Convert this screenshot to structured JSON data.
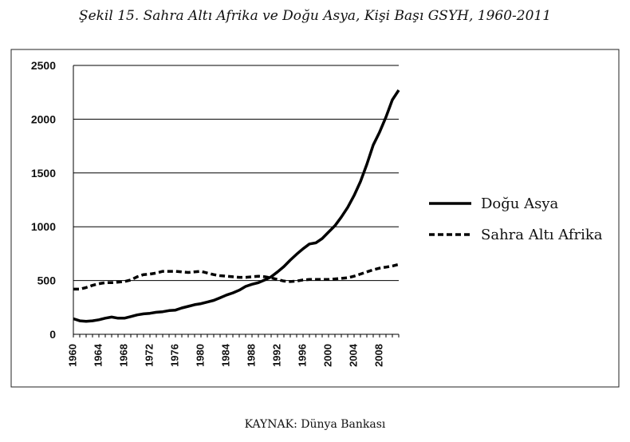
{
  "caption": "Şekil 15. Sahra Altı Afrika ve Doğu Asya, Kişi Başı GSYH, 1960-2011",
  "source": "KAYNAK: Dünya Bankası",
  "chart_data": {
    "type": "line",
    "title": "",
    "xlabel": "",
    "ylabel": "",
    "ylim": [
      0,
      2500
    ],
    "yticks": [
      "0",
      "500",
      "1000",
      "1500",
      "2000",
      "2500"
    ],
    "xticks": [
      "1960",
      "1964",
      "1968",
      "1972",
      "1976",
      "1980",
      "1984",
      "1988",
      "1992",
      "1996",
      "2000",
      "2004",
      "2008"
    ],
    "grid": "horizontal",
    "legend": "right",
    "x": [
      1960,
      1961,
      1962,
      1963,
      1964,
      1965,
      1966,
      1967,
      1968,
      1969,
      1970,
      1971,
      1972,
      1973,
      1974,
      1975,
      1976,
      1977,
      1978,
      1979,
      1980,
      1981,
      1982,
      1983,
      1984,
      1985,
      1986,
      1987,
      1988,
      1989,
      1990,
      1991,
      1992,
      1993,
      1994,
      1995,
      1996,
      1997,
      1998,
      1999,
      2000,
      2001,
      2002,
      2003,
      2004,
      2005,
      2006,
      2007,
      2008,
      2009,
      2010,
      2011
    ],
    "series": [
      {
        "name": "Doğu Asya",
        "style": "solid",
        "color": "#000000",
        "values": [
          145,
          125,
          120,
          125,
          135,
          150,
          160,
          150,
          150,
          165,
          180,
          190,
          195,
          205,
          210,
          220,
          225,
          245,
          260,
          275,
          285,
          300,
          315,
          340,
          365,
          385,
          410,
          445,
          465,
          480,
          505,
          535,
          580,
          630,
          690,
          745,
          795,
          840,
          850,
          890,
          950,
          1010,
          1090,
          1180,
          1290,
          1420,
          1580,
          1760,
          1880,
          2020,
          2180,
          2270
        ]
      },
      {
        "name": "Sahra Altı Afrika",
        "style": "dashed",
        "color": "#000000",
        "values": [
          420,
          420,
          435,
          455,
          470,
          480,
          480,
          485,
          490,
          505,
          535,
          555,
          560,
          570,
          585,
          585,
          585,
          580,
          575,
          580,
          585,
          570,
          555,
          545,
          540,
          535,
          530,
          530,
          535,
          540,
          535,
          525,
          510,
          495,
          490,
          495,
          505,
          510,
          510,
          510,
          510,
          515,
          520,
          525,
          540,
          560,
          580,
          600,
          615,
          625,
          635,
          650
        ]
      }
    ]
  }
}
